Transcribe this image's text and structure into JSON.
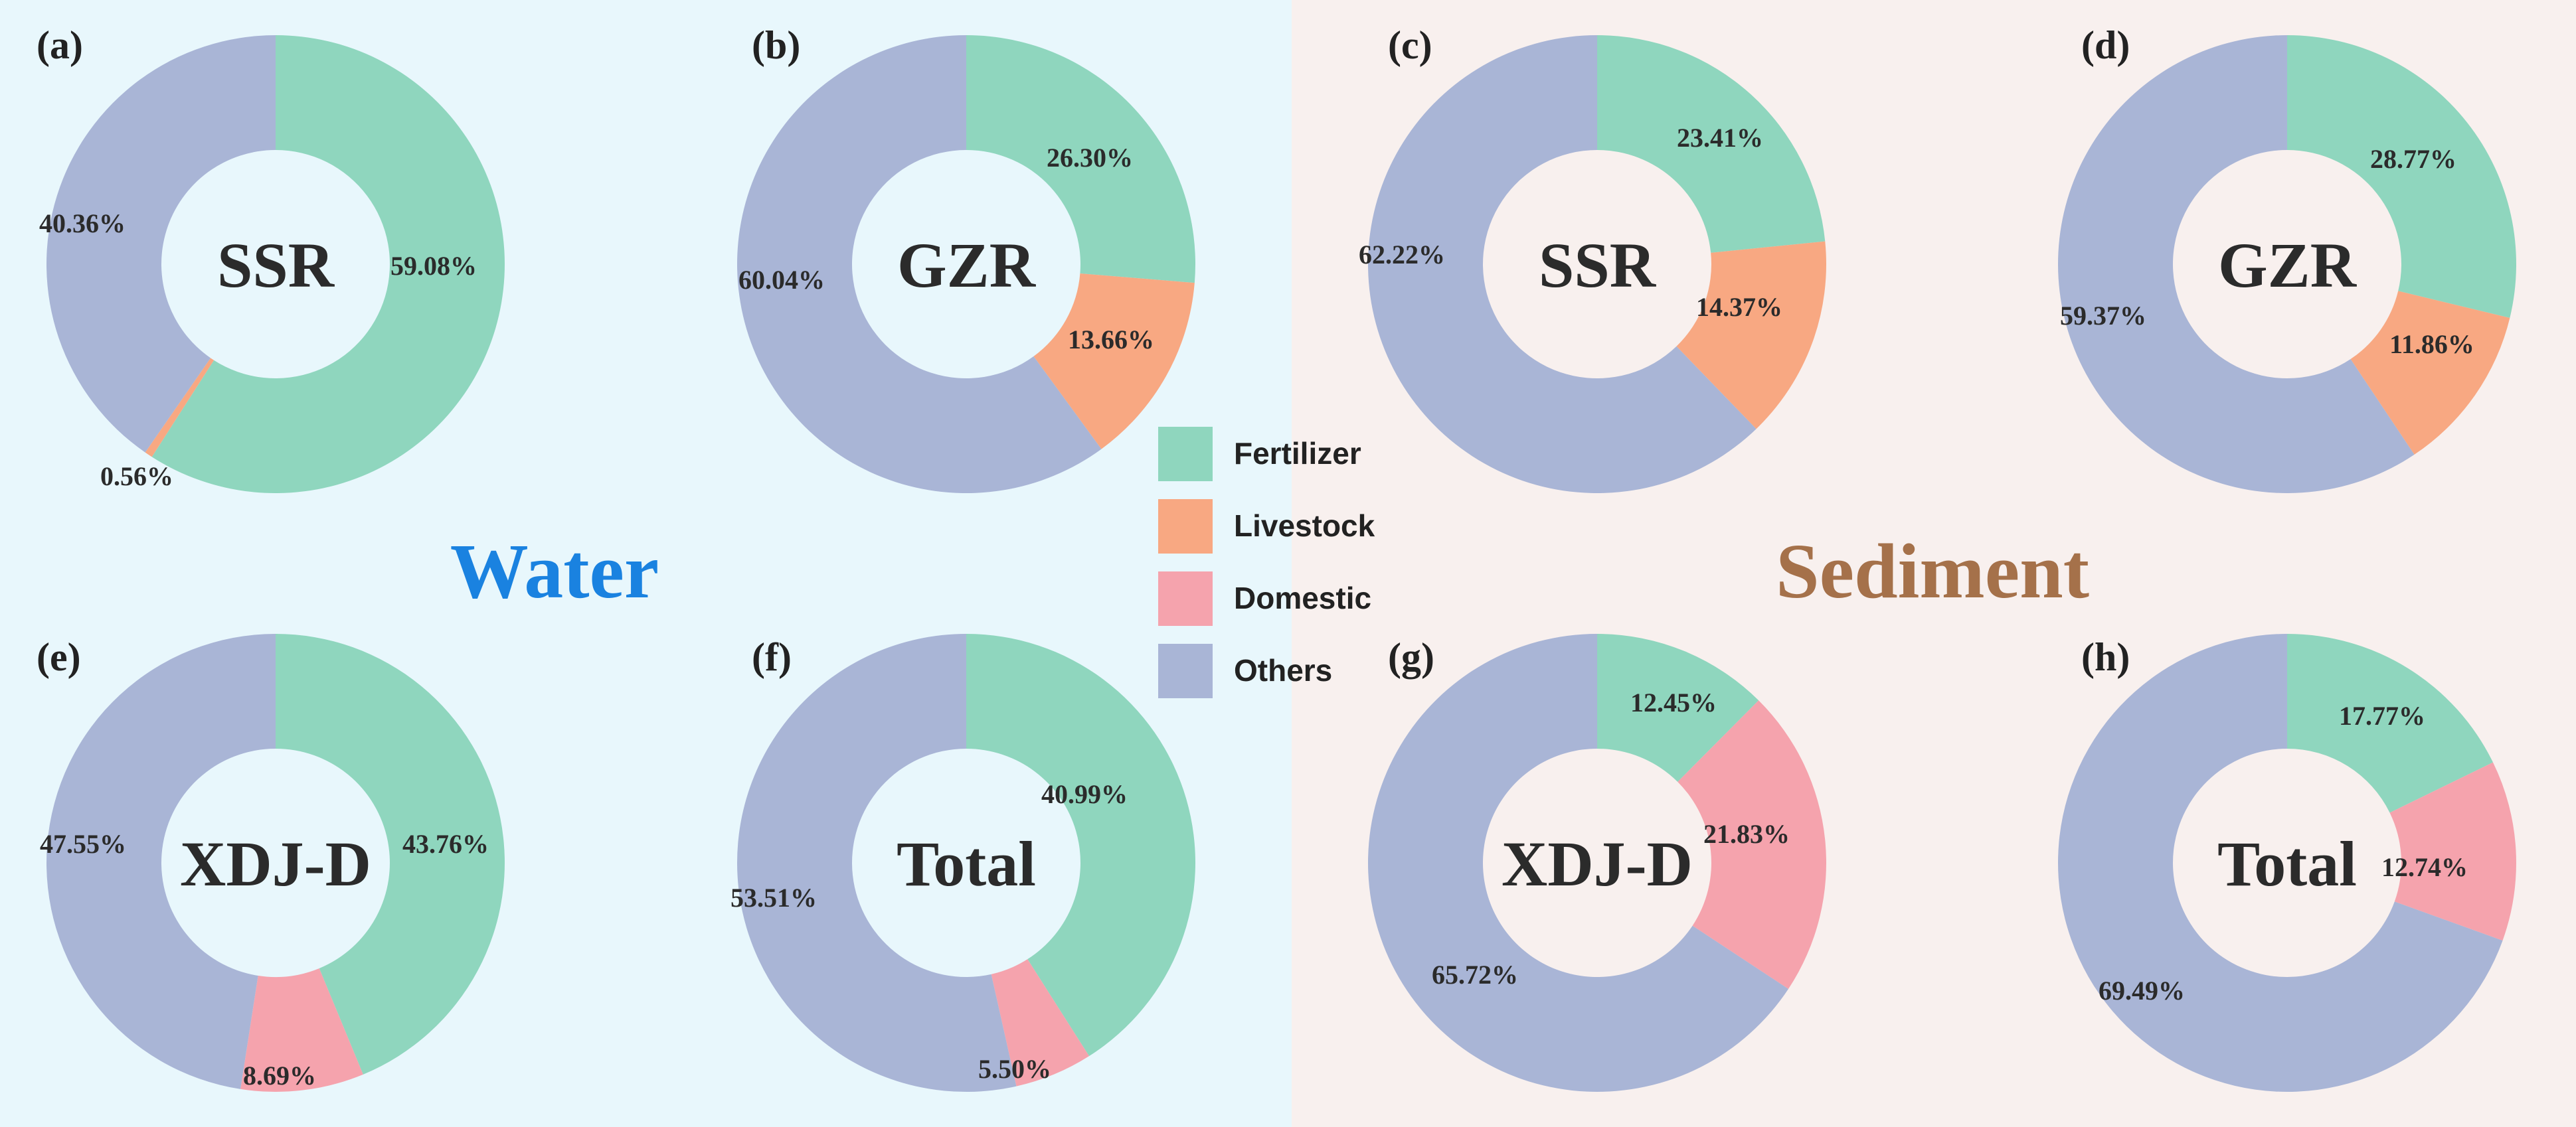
{
  "sections": {
    "water": {
      "title": "Water",
      "title_color": "#1a82e0",
      "background": "#e8f7fc"
    },
    "sediment": {
      "title": "Sediment",
      "title_color": "#a5714a",
      "background": "#f8f0ee"
    }
  },
  "legend": {
    "items": [
      {
        "key": "fertilizer",
        "label": "Fertilizer",
        "color": "#8fd6be"
      },
      {
        "key": "livestock",
        "label": "Livestock",
        "color": "#f8a882"
      },
      {
        "key": "domestic",
        "label": "Domestic",
        "color": "#f5a3ad"
      },
      {
        "key": "others",
        "label": "Others",
        "color": "#a9b5d6"
      }
    ]
  },
  "chart_data": [
    {
      "type": "pie",
      "style": "donut",
      "panel": "(a)",
      "section": "Water",
      "center_label": "SSR",
      "slices": [
        {
          "category": "Fertilizer",
          "value": 59.08,
          "label": "59.08%"
        },
        {
          "category": "Livestock",
          "value": 0.56,
          "label": "0.56%"
        },
        {
          "category": "Others",
          "value": 40.36,
          "label": "40.36%"
        }
      ]
    },
    {
      "type": "pie",
      "style": "donut",
      "panel": "(b)",
      "section": "Water",
      "center_label": "GZR",
      "slices": [
        {
          "category": "Fertilizer",
          "value": 26.3,
          "label": "26.30%"
        },
        {
          "category": "Livestock",
          "value": 13.66,
          "label": "13.66%"
        },
        {
          "category": "Others",
          "value": 60.04,
          "label": "60.04%"
        }
      ]
    },
    {
      "type": "pie",
      "style": "donut",
      "panel": "(c)",
      "section": "Sediment",
      "center_label": "SSR",
      "slices": [
        {
          "category": "Fertilizer",
          "value": 23.41,
          "label": "23.41%"
        },
        {
          "category": "Livestock",
          "value": 14.37,
          "label": "14.37%"
        },
        {
          "category": "Others",
          "value": 62.22,
          "label": "62.22%"
        }
      ]
    },
    {
      "type": "pie",
      "style": "donut",
      "panel": "(d)",
      "section": "Sediment",
      "center_label": "GZR",
      "slices": [
        {
          "category": "Fertilizer",
          "value": 28.77,
          "label": "28.77%"
        },
        {
          "category": "Livestock",
          "value": 11.86,
          "label": "11.86%"
        },
        {
          "category": "Others",
          "value": 59.37,
          "label": "59.37%"
        }
      ]
    },
    {
      "type": "pie",
      "style": "donut",
      "panel": "(e)",
      "section": "Water",
      "center_label": "XDJ-D",
      "slices": [
        {
          "category": "Fertilizer",
          "value": 43.76,
          "label": "43.76%"
        },
        {
          "category": "Domestic",
          "value": 8.69,
          "label": "8.69%"
        },
        {
          "category": "Others",
          "value": 47.55,
          "label": "47.55%"
        }
      ]
    },
    {
      "type": "pie",
      "style": "donut",
      "panel": "(f)",
      "section": "Water",
      "center_label": "Total",
      "slices": [
        {
          "category": "Fertilizer",
          "value": 40.99,
          "label": "40.99%"
        },
        {
          "category": "Domestic",
          "value": 5.5,
          "label": "5.50%"
        },
        {
          "category": "Others",
          "value": 53.51,
          "label": "53.51%"
        }
      ]
    },
    {
      "type": "pie",
      "style": "donut",
      "panel": "(g)",
      "section": "Sediment",
      "center_label": "XDJ-D",
      "slices": [
        {
          "category": "Fertilizer",
          "value": 12.45,
          "label": "12.45%"
        },
        {
          "category": "Domestic",
          "value": 21.83,
          "label": "21.83%"
        },
        {
          "category": "Others",
          "value": 65.72,
          "label": "65.72%"
        }
      ]
    },
    {
      "type": "pie",
      "style": "donut",
      "panel": "(h)",
      "section": "Sediment",
      "center_label": "Total",
      "slices": [
        {
          "category": "Fertilizer",
          "value": 17.77,
          "label": "17.77%"
        },
        {
          "category": "Domestic",
          "value": 12.74,
          "label": "12.74%"
        },
        {
          "category": "Others",
          "value": 69.49,
          "label": "69.49%"
        }
      ]
    }
  ]
}
